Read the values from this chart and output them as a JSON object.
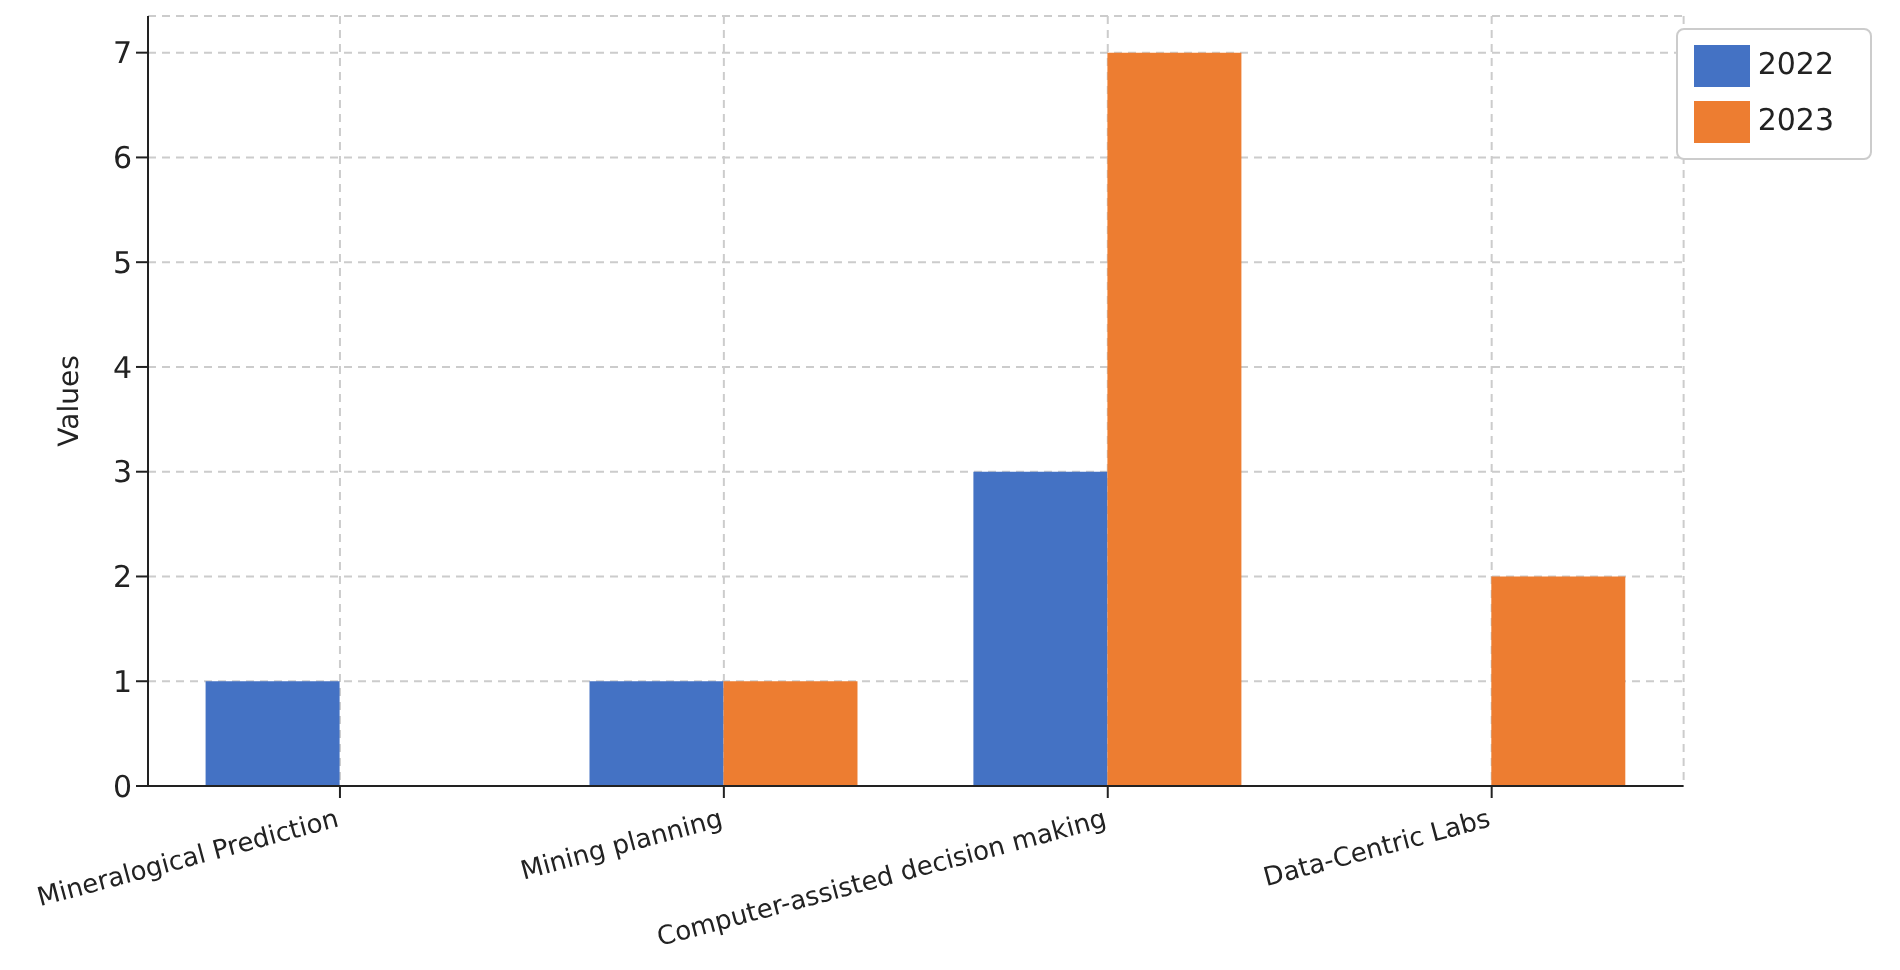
{
  "chart_data": {
    "type": "bar",
    "ylabel": "Values",
    "categories": [
      "Mineralogical Prediction",
      "Mining planning",
      "Computer-assisted decision making",
      "Data-Centric Labs"
    ],
    "series": [
      {
        "name": "2022",
        "color": "#4472c4",
        "values": [
          1,
          1,
          3,
          0
        ]
      },
      {
        "name": "2023",
        "color": "#ed7d31",
        "values": [
          0,
          1,
          7,
          2
        ]
      }
    ],
    "ylim": [
      0,
      7.35
    ],
    "yticks": [
      0,
      1,
      2,
      3,
      4,
      5,
      6,
      7
    ],
    "grid": true,
    "legend": "top right"
  }
}
